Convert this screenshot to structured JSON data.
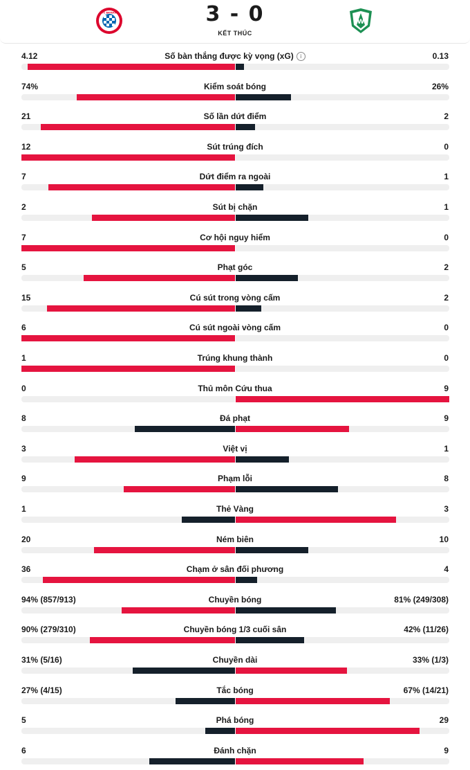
{
  "match": {
    "score": "3 - 0",
    "status": "KẾT THÚC",
    "home_logo": "bayern-munich-crest-icon",
    "away_logo": "werder-bremen-crest-icon"
  },
  "colors": {
    "leader": "#e5143f",
    "trailer": "#15202b",
    "track": "#efefef"
  },
  "stats": [
    {
      "name": "Số bàn thắng được kỳ vọng (xG)",
      "home": "4.12",
      "away": "0.13",
      "home_share": 0.97,
      "away_share": 0.04,
      "info": true
    },
    {
      "name": "Kiểm soát bóng",
      "home": "74%",
      "away": "26%",
      "home_share": 0.74,
      "away_share": 0.26
    },
    {
      "name": "Số lần dứt điểm",
      "home": "21",
      "away": "2",
      "home_share": 0.91,
      "away_share": 0.09
    },
    {
      "name": "Sút trúng đích",
      "home": "12",
      "away": "0",
      "home_share": 1.0,
      "away_share": 0.0
    },
    {
      "name": "Dứt điểm ra ngoài",
      "home": "7",
      "away": "1",
      "home_share": 0.875,
      "away_share": 0.13
    },
    {
      "name": "Sút bị chặn",
      "home": "2",
      "away": "1",
      "home_share": 0.67,
      "away_share": 0.34
    },
    {
      "name": "Cơ hội nguy hiểm",
      "home": "7",
      "away": "0",
      "home_share": 1.0,
      "away_share": 0.0
    },
    {
      "name": "Phạt góc",
      "home": "5",
      "away": "2",
      "home_share": 0.71,
      "away_share": 0.29
    },
    {
      "name": "Cú sút trong vòng cấm",
      "home": "15",
      "away": "2",
      "home_share": 0.88,
      "away_share": 0.12
    },
    {
      "name": "Cú sút ngoài vòng cấm",
      "home": "6",
      "away": "0",
      "home_share": 1.0,
      "away_share": 0.0
    },
    {
      "name": "Trúng khung thành",
      "home": "1",
      "away": "0",
      "home_share": 1.0,
      "away_share": 0.0
    },
    {
      "name": "Thủ môn Cứu thua",
      "home": "0",
      "away": "9",
      "home_share": 0.0,
      "away_share": 1.0
    },
    {
      "name": "Đá phạt",
      "home": "8",
      "away": "9",
      "home_share": 0.47,
      "away_share": 0.53
    },
    {
      "name": "Việt vị",
      "home": "3",
      "away": "1",
      "home_share": 0.75,
      "away_share": 0.25
    },
    {
      "name": "Phạm lỗi",
      "home": "9",
      "away": "8",
      "home_share": 0.52,
      "away_share": 0.48
    },
    {
      "name": "Thẻ Vàng",
      "home": "1",
      "away": "3",
      "home_share": 0.25,
      "away_share": 0.75
    },
    {
      "name": "Ném biên",
      "home": "20",
      "away": "10",
      "home_share": 0.66,
      "away_share": 0.34
    },
    {
      "name": "Chạm ở sân đối phương",
      "home": "36",
      "away": "4",
      "home_share": 0.9,
      "away_share": 0.1
    },
    {
      "name": "Chuyền bóng",
      "home": "94% (857/913)",
      "away": "81% (249/308)",
      "home_share": 0.53,
      "away_share": 0.47
    },
    {
      "name": "Chuyền bóng 1/3 cuối sân",
      "home": "90% (279/310)",
      "away": "42% (11/26)",
      "home_share": 0.68,
      "away_share": 0.32
    },
    {
      "name": "Chuyền dài",
      "home": "31% (5/16)",
      "away": "33% (1/3)",
      "home_share": 0.48,
      "away_share": 0.52
    },
    {
      "name": "Tắc bóng",
      "home": "27% (4/15)",
      "away": "67% (14/21)",
      "home_share": 0.28,
      "away_share": 0.72
    },
    {
      "name": "Phá bóng",
      "home": "5",
      "away": "29",
      "home_share": 0.14,
      "away_share": 0.86
    },
    {
      "name": "Đánh chặn",
      "home": "6",
      "away": "9",
      "home_share": 0.4,
      "away_share": 0.6
    }
  ]
}
